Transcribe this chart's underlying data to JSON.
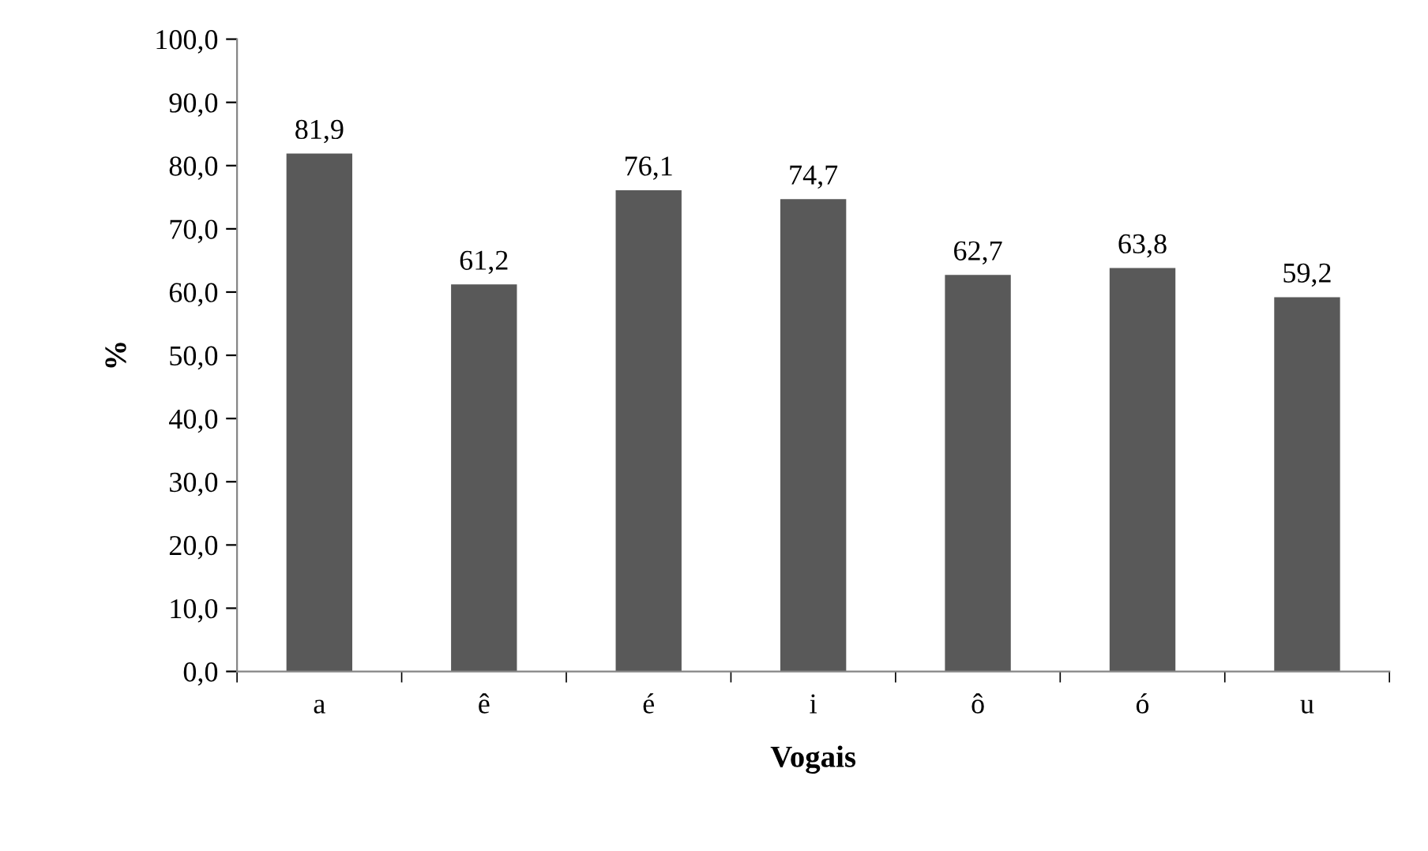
{
  "chart_data": {
    "type": "bar",
    "xlabel": "Vogais",
    "ylabel": "%",
    "categories": [
      "a",
      "ê",
      "é",
      "i",
      "ô",
      "ó",
      "u"
    ],
    "values": [
      81.9,
      61.2,
      76.1,
      74.7,
      62.7,
      63.8,
      59.2
    ],
    "value_labels": [
      "81,9",
      "61,2",
      "76,1",
      "74,7",
      "62,7",
      "63,8",
      "59,2"
    ],
    "color": "#595959",
    "ylim": [
      0,
      100
    ],
    "yticks": [
      {
        "value": 0,
        "label": "0,0"
      },
      {
        "value": 10,
        "label": "10,0"
      },
      {
        "value": 20,
        "label": "20,0"
      },
      {
        "value": 30,
        "label": "30,0"
      },
      {
        "value": 40,
        "label": "40,0"
      },
      {
        "value": 50,
        "label": "50,0"
      },
      {
        "value": 60,
        "label": "60,0"
      },
      {
        "value": 70,
        "label": "70,0"
      },
      {
        "value": 80,
        "label": "80,0"
      },
      {
        "value": 90,
        "label": "90,0"
      },
      {
        "value": 100,
        "label": "100,0"
      }
    ],
    "grid": false,
    "legend": false
  }
}
